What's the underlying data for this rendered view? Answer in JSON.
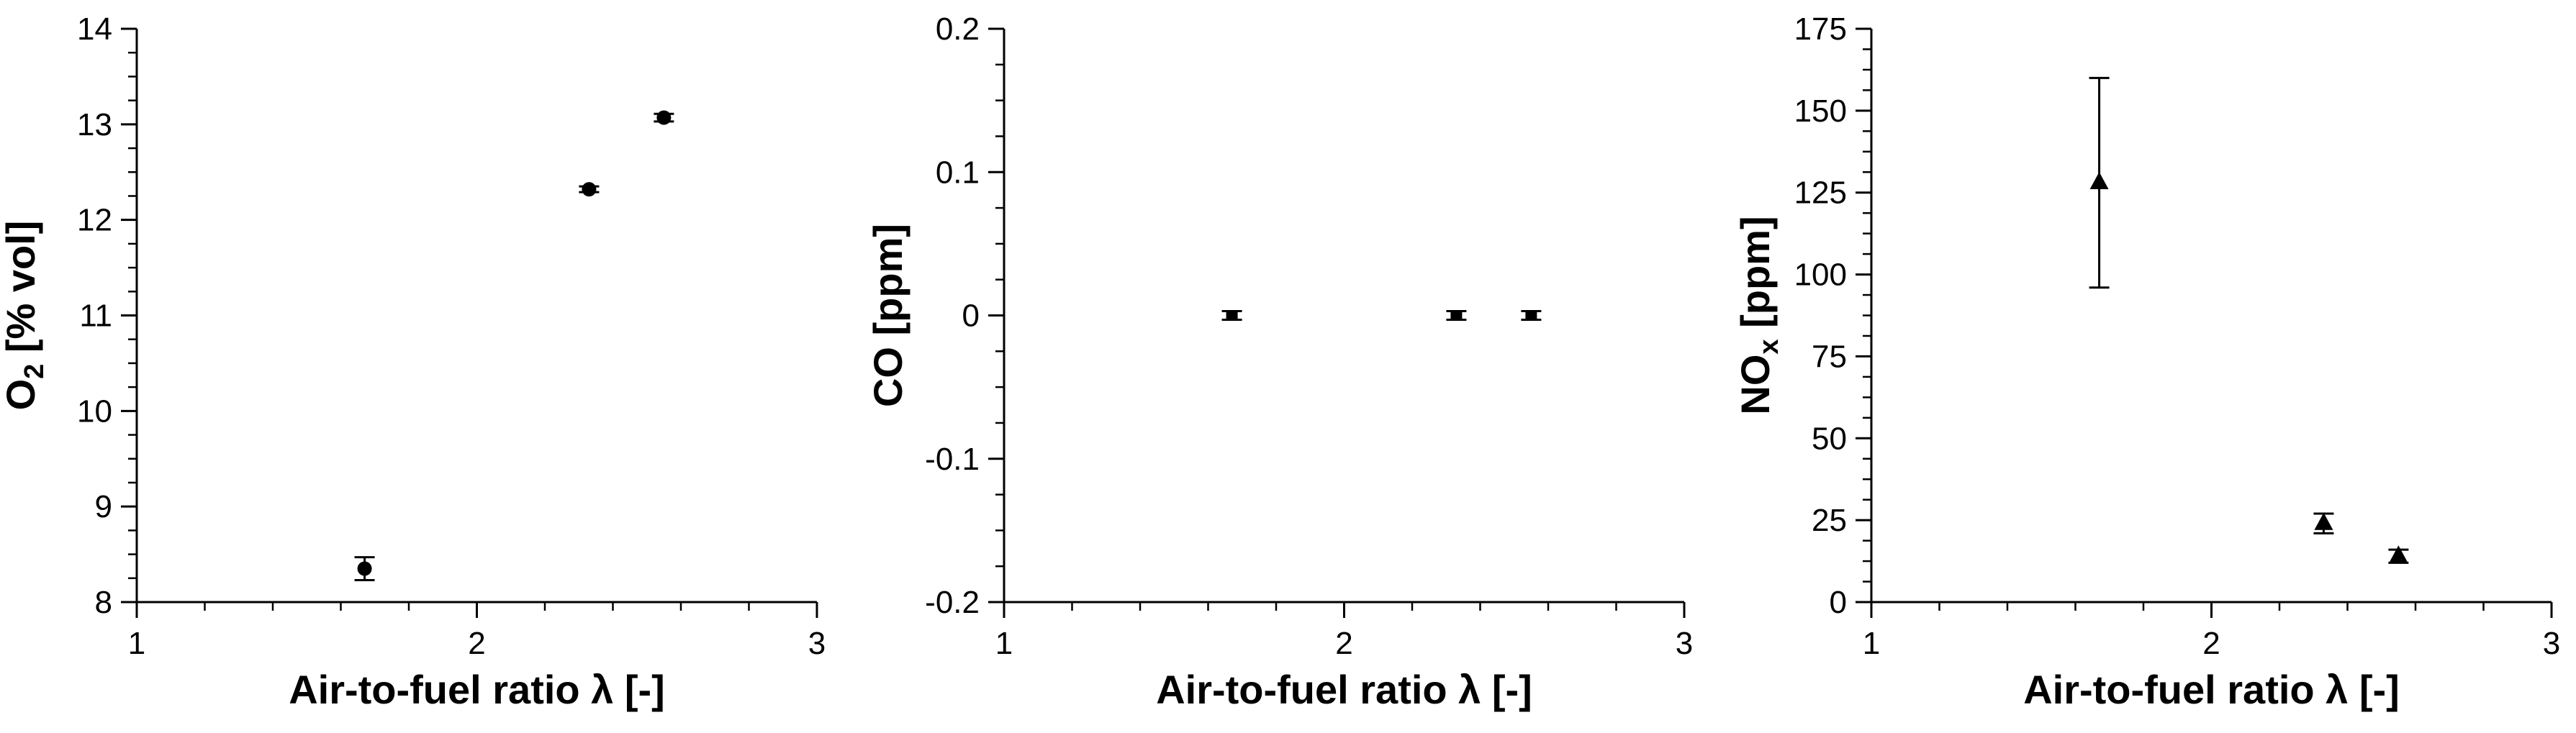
{
  "chart_data": [
    {
      "type": "scatter",
      "xlabel": "Air-to-fuel ratio λ [-]",
      "ylabel_main": "O",
      "ylabel_sub": "2",
      "ylabel_rest": " [% vol]",
      "xlim": [
        1,
        3
      ],
      "ylim": [
        8,
        14
      ],
      "xticks": [
        "1",
        "2",
        "3"
      ],
      "yticks": [
        "8",
        "9",
        "10",
        "11",
        "12",
        "13",
        "14"
      ],
      "marker": "circle",
      "points": [
        {
          "x": 1.67,
          "y": 8.35,
          "err": 0.12
        },
        {
          "x": 2.33,
          "y": 12.32,
          "err": 0.03
        },
        {
          "x": 2.55,
          "y": 13.07,
          "err": 0.04
        }
      ]
    },
    {
      "type": "scatter",
      "xlabel": "Air-to-fuel ratio λ [-]",
      "ylabel_main": "CO",
      "ylabel_sub": "",
      "ylabel_rest": " [ppm]",
      "xlim": [
        1,
        3
      ],
      "ylim": [
        -0.2,
        0.2
      ],
      "xticks": [
        "1",
        "2",
        "3"
      ],
      "yticks": [
        "-0.2",
        "-0.1",
        "0",
        "0.1",
        "0.2"
      ],
      "marker": "square",
      "points": [
        {
          "x": 1.67,
          "y": 0,
          "err": 0.003
        },
        {
          "x": 2.33,
          "y": 0,
          "err": 0.003
        },
        {
          "x": 2.55,
          "y": 0,
          "err": 0.003
        }
      ]
    },
    {
      "type": "scatter",
      "xlabel": "Air-to-fuel ratio λ [-]",
      "ylabel_main": "NO",
      "ylabel_sub": "x",
      "ylabel_rest": " [ppm]",
      "xlim": [
        1,
        3
      ],
      "ylim": [
        0,
        175
      ],
      "xticks": [
        "1",
        "2",
        "3"
      ],
      "yticks": [
        "0",
        "25",
        "50",
        "75",
        "100",
        "125",
        "150",
        "175"
      ],
      "marker": "triangle",
      "points": [
        {
          "x": 1.67,
          "y": 128,
          "err": 32
        },
        {
          "x": 2.33,
          "y": 24,
          "err": 3
        },
        {
          "x": 2.55,
          "y": 14,
          "err": 2
        }
      ]
    }
  ]
}
